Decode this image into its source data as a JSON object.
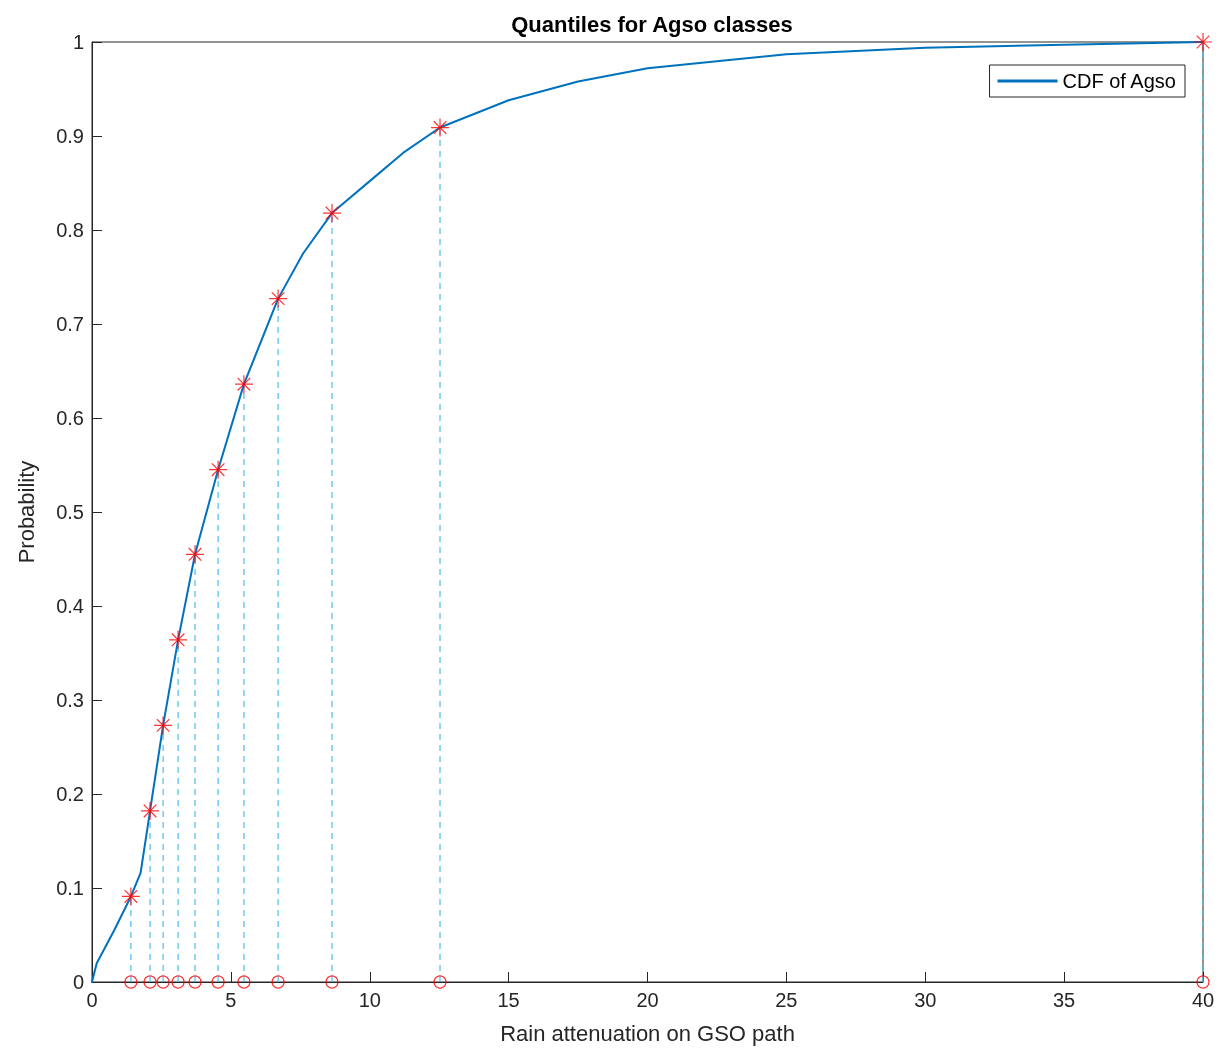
{
  "chart_data": {
    "type": "line",
    "title": "Quantiles for Agso classes",
    "xlabel": "Rain attenuation on GSO path",
    "ylabel": "Probability",
    "xlim": [
      0,
      40
    ],
    "xticks": [
      0,
      5,
      10,
      15,
      20,
      25,
      30,
      35,
      40
    ],
    "ylim": [
      0,
      1
    ],
    "yticks": [
      0,
      0.1,
      0.2,
      0.3,
      0.4,
      0.5,
      0.6,
      0.7,
      0.8,
      0.9,
      1
    ],
    "legend": "top right",
    "series": [
      {
        "name": "CDF of Agso",
        "color": "#0072bd",
        "marker": "none",
        "line_style": "solid",
        "x": [
          0,
          0.17,
          0.8,
          1.4,
          1.75,
          2.09,
          2.56,
          3.1,
          3.71,
          4.54,
          5.47,
          6.7,
          7.6,
          8.64,
          10,
          11.2,
          12.53,
          15,
          17.5,
          20,
          25,
          30,
          35,
          40
        ],
        "values": [
          0,
          0.02,
          0.055,
          0.091,
          0.116,
          0.182,
          0.273,
          0.364,
          0.455,
          0.545,
          0.636,
          0.727,
          0.775,
          0.818,
          0.852,
          0.882,
          0.909,
          0.938,
          0.958,
          0.972,
          0.987,
          0.994,
          0.997,
          1
        ]
      },
      {
        "type": "lollipop",
        "color": "#ff0000",
        "marker": "cross",
        "line_style": "dashed",
        "x": [
          1.4,
          2.09,
          2.56,
          3.1,
          3.71,
          4.54,
          5.47,
          6.7,
          8.64,
          12.53,
          40
        ],
        "values": [
          0.091,
          0.182,
          0.273,
          0.364,
          0.455,
          0.545,
          0.636,
          0.727,
          0.818,
          0.909,
          1
        ]
      },
      {
        "type": "scatter",
        "color": "#ff0000",
        "marker": "circle",
        "x": [
          1.4,
          2.09,
          2.56,
          3.1,
          3.71,
          4.54,
          5.47,
          6.7,
          8.64,
          12.53,
          40
        ],
        "values": [
          0,
          0,
          0,
          0,
          0,
          0,
          0,
          0,
          0,
          0,
          0
        ]
      }
    ]
  }
}
